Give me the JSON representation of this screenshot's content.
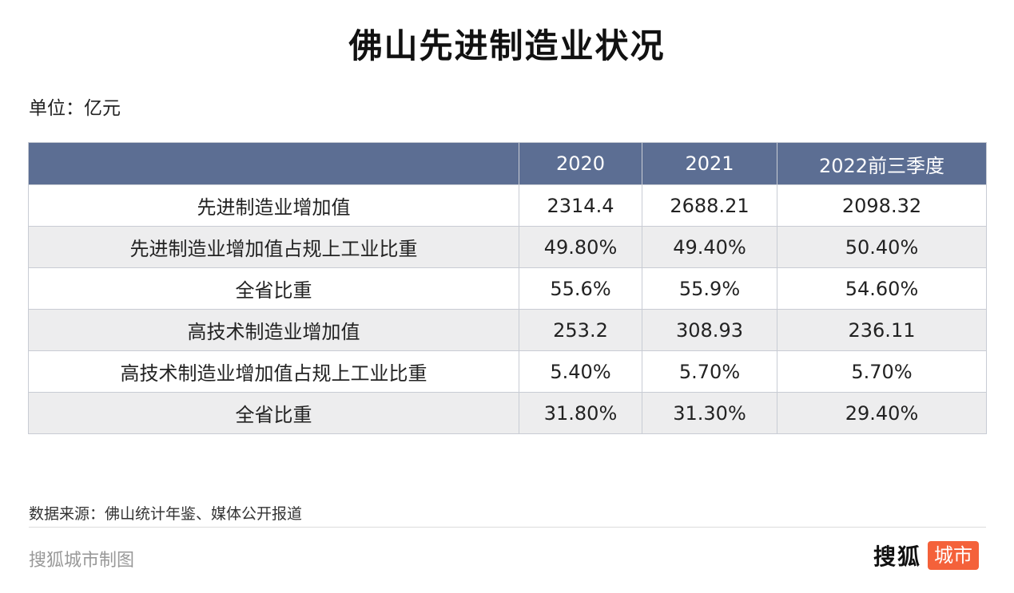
{
  "title": "佛山先进制造业状况",
  "unit": "单位：亿元",
  "table": {
    "headers": [
      "",
      "2020",
      "2021",
      "2022前三季度"
    ],
    "rows": [
      [
        "先进制造业增加值",
        "2314.4",
        "2688.21",
        "2098.32"
      ],
      [
        "先进制造业增加值占规上工业比重",
        "49.80%",
        "49.40%",
        "50.40%"
      ],
      [
        "全省比重",
        "55.6%",
        "55.9%",
        "54.60%"
      ],
      [
        "高技术制造业增加值",
        "253.2",
        "308.93",
        "236.11"
      ],
      [
        "高技术制造业增加值占规上工业比重",
        "5.40%",
        "5.70%",
        "5.70%"
      ],
      [
        "全省比重",
        "31.80%",
        "31.30%",
        "29.40%"
      ]
    ]
  },
  "footer": {
    "source": "数据来源：佛山统计年鉴、媒体公开报道",
    "credit": "搜狐城市制图",
    "logo_text": "搜狐",
    "logo_badge": "城市",
    "logo_badge_color": "#f4613a"
  },
  "colors": {
    "header_bg": "#5c6e93",
    "stripe_bg": "#ededee"
  }
}
